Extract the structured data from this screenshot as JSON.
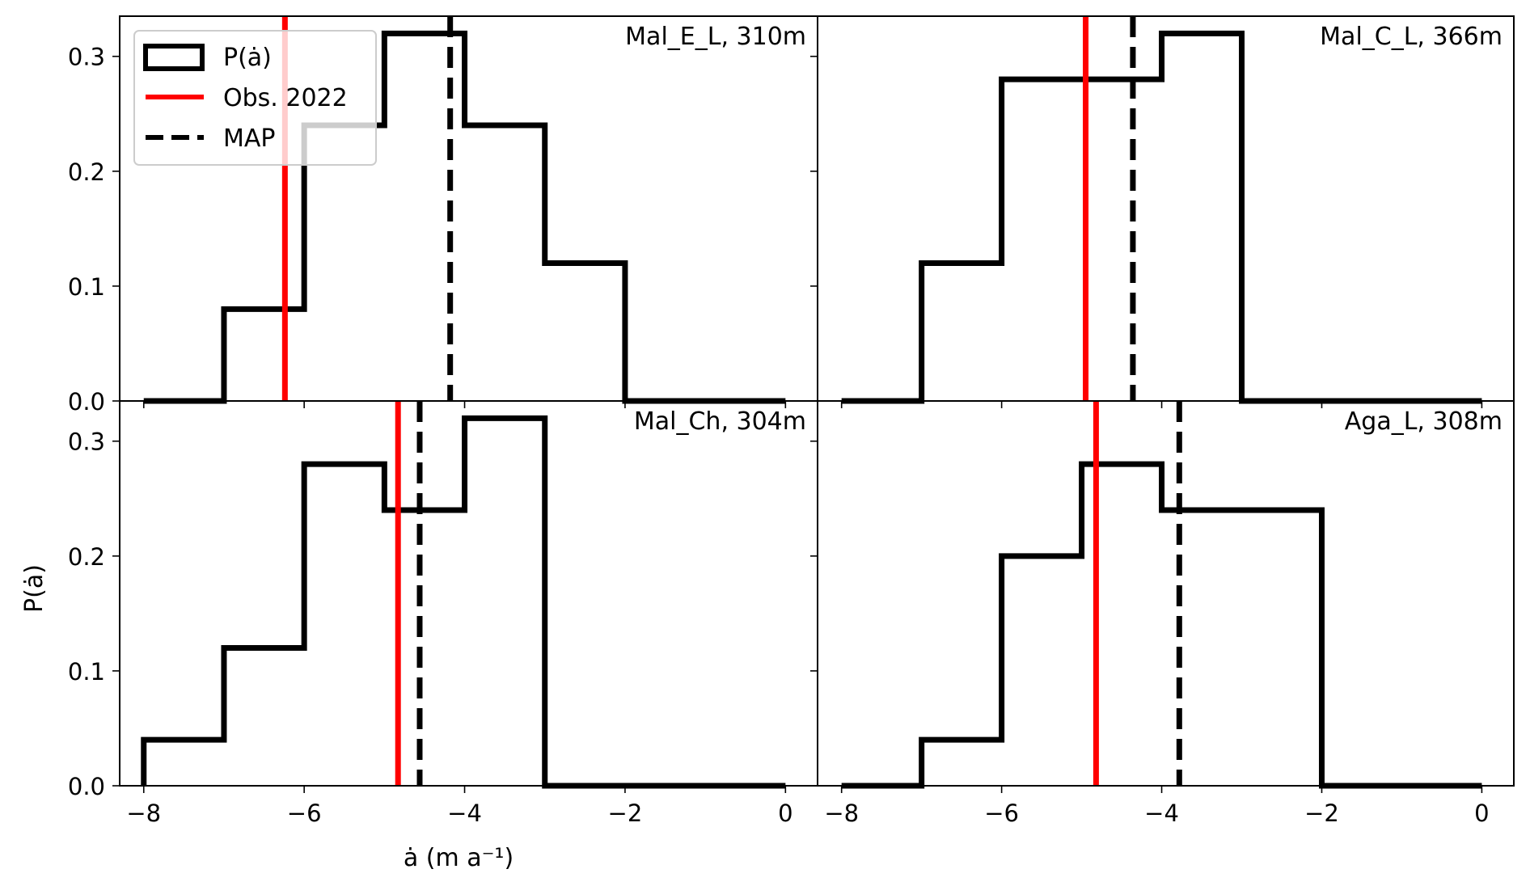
{
  "chart_data": {
    "type": "step-histogram",
    "xlabel": "ȧ (m a⁻¹)",
    "ylabel": "P(ȧ)",
    "xlim": [
      -8.3,
      0.4
    ],
    "ylim": [
      0,
      0.335
    ],
    "xticks": [
      -8,
      -6,
      -4,
      -2,
      0
    ],
    "xtick_labels": [
      "−8",
      "−6",
      "−4",
      "−2",
      "0"
    ],
    "yticks": [
      0.0,
      0.1,
      0.2,
      0.3
    ],
    "ytick_labels": [
      "0.0",
      "0.1",
      "0.2",
      "0.3"
    ],
    "bin_edges": [
      -8,
      -7,
      -6,
      -5,
      -4,
      -3,
      -2,
      -1,
      0
    ],
    "grid": false,
    "legend": {
      "placement": "upper-left of top-left panel",
      "entries": [
        {
          "label": "P(ȧ)",
          "style": "black step outline"
        },
        {
          "label": "Obs. 2022",
          "style": "red solid line"
        },
        {
          "label": "MAP",
          "style": "black dashed line"
        }
      ]
    },
    "colors": {
      "histogram": "#000000",
      "observation": "#ff0000",
      "map": "#000000"
    },
    "panels": [
      {
        "title": "Mal_E_L, 310m",
        "values": [
          0.0,
          0.08,
          0.24,
          0.32,
          0.24,
          0.12,
          0.0,
          0.0
        ],
        "obs_2022": -6.24,
        "map": -4.18
      },
      {
        "title": "Mal_C_L, 366m",
        "values": [
          0.0,
          0.12,
          0.28,
          0.28,
          0.32,
          0.0,
          0.0,
          0.0
        ],
        "obs_2022": -4.95,
        "map": -4.36
      },
      {
        "title": "Mal_Ch, 304m",
        "values": [
          0.04,
          0.12,
          0.28,
          0.24,
          0.32,
          0.0,
          0.0,
          0.0
        ],
        "obs_2022": -4.83,
        "map": -4.56
      },
      {
        "title": "Aga_L, 308m",
        "values": [
          0.0,
          0.04,
          0.2,
          0.28,
          0.24,
          0.24,
          0.0,
          0.0
        ],
        "obs_2022": -4.82,
        "map": -3.78
      }
    ]
  }
}
